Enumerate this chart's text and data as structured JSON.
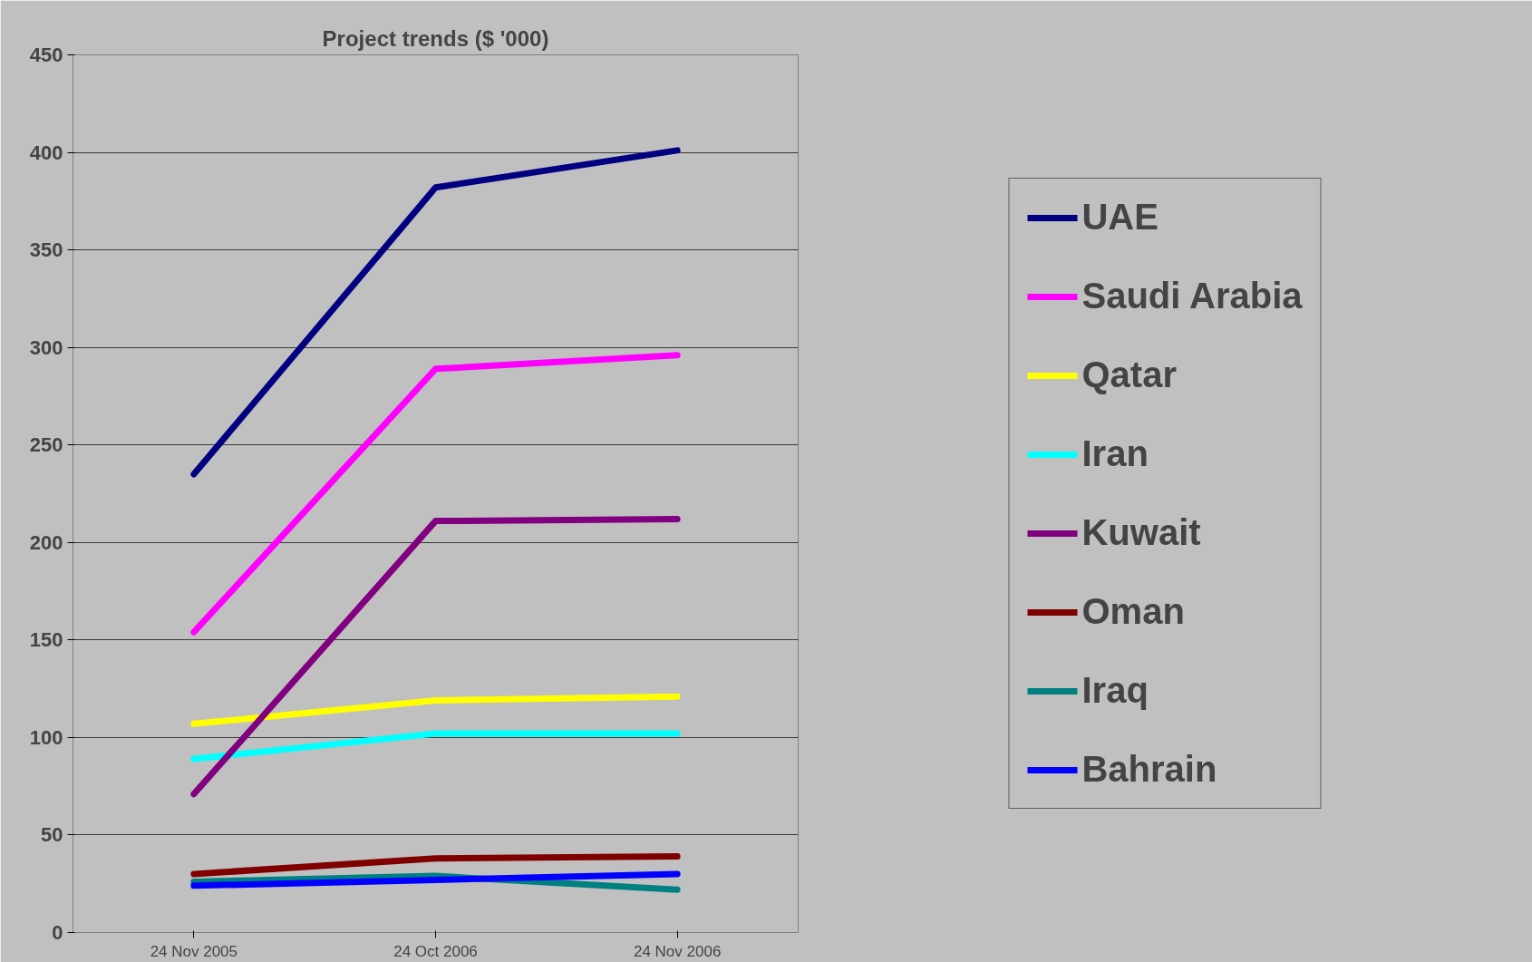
{
  "chart_data": {
    "type": "line",
    "title": "Project trends ($ '000)",
    "categories": [
      "24 Nov 2005",
      "24 Oct 2006",
      "24 Nov 2006"
    ],
    "ylim": [
      0,
      450
    ],
    "yticks": [
      0,
      50,
      100,
      150,
      200,
      250,
      300,
      350,
      400,
      450
    ],
    "grid": "y",
    "legend": "right",
    "marker": "none",
    "line_style": "solid",
    "series": [
      {
        "name": "UAE",
        "color": "#000080",
        "values": [
          235,
          382,
          401
        ]
      },
      {
        "name": "Saudi Arabia",
        "color": "#ff00ff",
        "values": [
          154,
          289,
          296
        ]
      },
      {
        "name": "Qatar",
        "color": "#ffff00",
        "values": [
          107,
          119,
          121
        ]
      },
      {
        "name": "Iran",
        "color": "#00ffff",
        "values": [
          89,
          102,
          102
        ]
      },
      {
        "name": "Kuwait",
        "color": "#800080",
        "values": [
          71,
          211,
          212
        ]
      },
      {
        "name": "Oman",
        "color": "#800000",
        "values": [
          30,
          38,
          39
        ]
      },
      {
        "name": "Iraq",
        "color": "#008080",
        "values": [
          26,
          29,
          22
        ]
      },
      {
        "name": "Bahrain",
        "color": "#0000ff",
        "values": [
          24,
          27,
          30
        ]
      }
    ]
  }
}
